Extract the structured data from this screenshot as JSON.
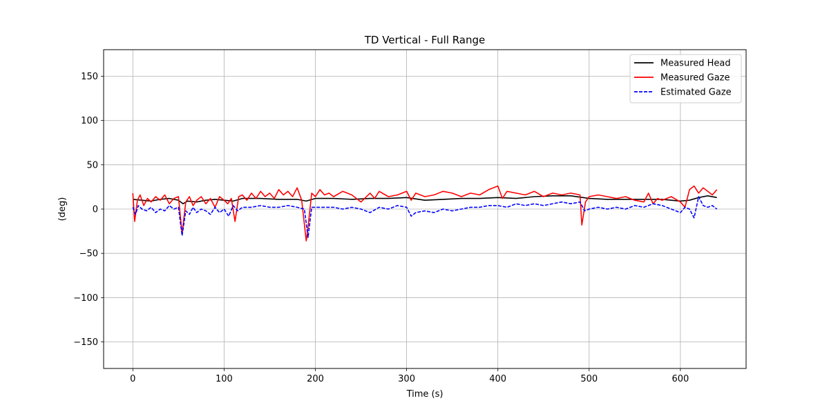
{
  "chart_data": {
    "type": "line",
    "title": "TD Vertical - Full Range",
    "xlabel": "Time (s)",
    "ylabel": "(deg)",
    "xlim": [
      -32,
      672
    ],
    "ylim": [
      -180,
      180
    ],
    "xticks": [
      0,
      100,
      200,
      300,
      400,
      500,
      600
    ],
    "yticks": [
      -150,
      -100,
      -50,
      0,
      50,
      100,
      150
    ],
    "xtick_labels": [
      "0",
      "100",
      "200",
      "300",
      "400",
      "500",
      "600"
    ],
    "ytick_labels": [
      "−150",
      "−100",
      "−50",
      "0",
      "50",
      "100",
      "150"
    ],
    "grid": true,
    "legend_position": "top-right",
    "series": [
      {
        "name": "Measured Head",
        "color": "#000000",
        "dash": "solid",
        "x": [
          0,
          10,
          20,
          30,
          40,
          50,
          55,
          60,
          70,
          80,
          90,
          100,
          110,
          120,
          140,
          160,
          180,
          190,
          200,
          220,
          240,
          260,
          280,
          300,
          320,
          340,
          360,
          380,
          400,
          420,
          440,
          460,
          480,
          500,
          520,
          540,
          560,
          580,
          600,
          610,
          620,
          630,
          640
        ],
        "y": [
          11,
          10,
          9,
          11,
          12,
          10,
          6,
          9,
          8,
          10,
          11,
          10,
          9,
          12,
          12,
          11,
          11,
          9,
          12,
          12,
          11,
          12,
          12,
          13,
          10,
          11,
          12,
          12,
          13,
          12,
          14,
          15,
          15,
          12,
          11,
          11,
          11,
          11,
          9,
          10,
          13,
          15,
          13
        ]
      },
      {
        "name": "Measured Gaze",
        "color": "#ff0000",
        "dash": "solid",
        "x": [
          0,
          2,
          5,
          8,
          12,
          16,
          20,
          25,
          30,
          35,
          40,
          45,
          50,
          54,
          58,
          62,
          66,
          70,
          75,
          80,
          85,
          90,
          95,
          100,
          104,
          108,
          112,
          116,
          120,
          125,
          130,
          135,
          140,
          145,
          150,
          155,
          160,
          165,
          170,
          175,
          180,
          185,
          190,
          192,
          196,
          200,
          205,
          210,
          215,
          220,
          230,
          240,
          250,
          260,
          265,
          270,
          280,
          290,
          300,
          305,
          310,
          320,
          330,
          340,
          350,
          360,
          370,
          380,
          390,
          400,
          405,
          410,
          420,
          430,
          440,
          450,
          460,
          470,
          480,
          490,
          492,
          496,
          500,
          510,
          520,
          530,
          540,
          550,
          560,
          565,
          570,
          575,
          580,
          590,
          600,
          605,
          610,
          615,
          620,
          625,
          630,
          635,
          640
        ],
        "y": [
          18,
          -14,
          10,
          16,
          4,
          12,
          8,
          14,
          10,
          16,
          6,
          12,
          14,
          -28,
          8,
          14,
          4,
          10,
          14,
          6,
          12,
          2,
          14,
          10,
          6,
          12,
          -14,
          14,
          16,
          10,
          18,
          12,
          20,
          14,
          18,
          12,
          22,
          16,
          20,
          14,
          24,
          10,
          -36,
          -20,
          18,
          14,
          22,
          16,
          18,
          14,
          20,
          16,
          8,
          18,
          12,
          20,
          14,
          16,
          20,
          10,
          18,
          14,
          16,
          20,
          18,
          14,
          18,
          16,
          22,
          26,
          12,
          20,
          18,
          16,
          20,
          14,
          18,
          16,
          18,
          16,
          -18,
          8,
          14,
          16,
          14,
          12,
          14,
          10,
          8,
          18,
          6,
          12,
          10,
          14,
          8,
          2,
          22,
          26,
          18,
          24,
          20,
          16,
          22
        ]
      },
      {
        "name": "Estimated Gaze",
        "color": "#0000ff",
        "dash": "dashed",
        "x": [
          0,
          3,
          6,
          10,
          15,
          20,
          25,
          30,
          35,
          40,
          45,
          50,
          54,
          58,
          62,
          66,
          70,
          75,
          80,
          85,
          90,
          95,
          100,
          105,
          110,
          115,
          120,
          130,
          140,
          150,
          160,
          170,
          180,
          188,
          192,
          196,
          200,
          210,
          220,
          230,
          240,
          250,
          260,
          270,
          280,
          290,
          300,
          305,
          310,
          320,
          330,
          340,
          350,
          360,
          370,
          380,
          390,
          400,
          410,
          420,
          430,
          440,
          450,
          460,
          470,
          480,
          490,
          495,
          500,
          510,
          520,
          530,
          540,
          550,
          560,
          570,
          580,
          590,
          600,
          605,
          610,
          615,
          620,
          625,
          630,
          635,
          640
        ],
        "y": [
          2,
          -6,
          4,
          0,
          -2,
          2,
          -4,
          0,
          -2,
          4,
          0,
          2,
          -30,
          -2,
          -6,
          2,
          -4,
          0,
          -2,
          -6,
          2,
          -4,
          0,
          -8,
          4,
          -2,
          2,
          2,
          4,
          2,
          2,
          4,
          2,
          0,
          -32,
          2,
          2,
          2,
          2,
          0,
          2,
          0,
          -4,
          2,
          0,
          4,
          2,
          -8,
          -4,
          -2,
          -4,
          0,
          -2,
          0,
          2,
          2,
          4,
          4,
          2,
          6,
          4,
          6,
          4,
          6,
          8,
          6,
          8,
          -2,
          0,
          2,
          0,
          2,
          0,
          4,
          2,
          6,
          4,
          0,
          -4,
          2,
          0,
          -10,
          14,
          4,
          2,
          4,
          0
        ]
      }
    ]
  }
}
